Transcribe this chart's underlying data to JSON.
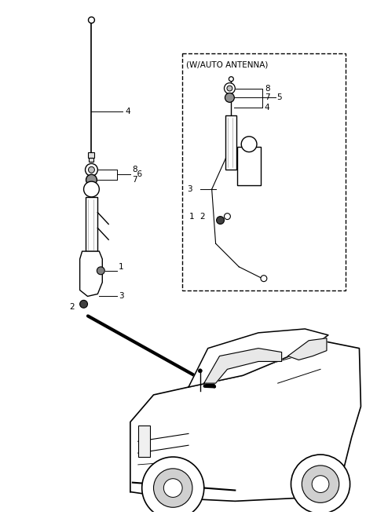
{
  "background_color": "#ffffff",
  "fig_width": 4.8,
  "fig_height": 6.56,
  "dpi": 100,
  "inset_label": "(W/AUTO ANTENNA)",
  "font_size": 7.5
}
